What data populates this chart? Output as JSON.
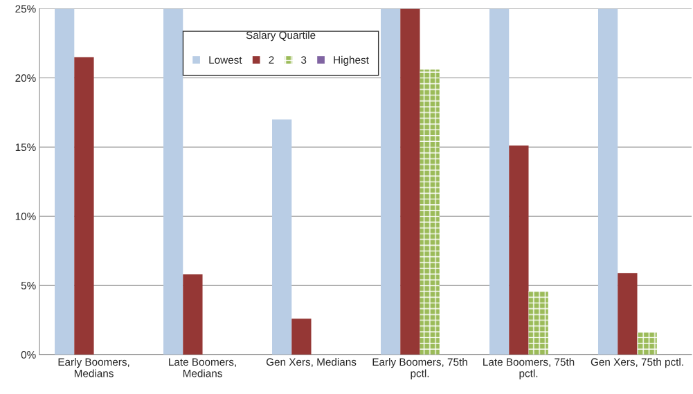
{
  "chart_data": {
    "type": "bar",
    "categories": [
      "Early Boomers,\nMedians",
      "Late Boomers,\nMedians",
      "Gen Xers, Medians",
      "Early Boomers, 75th\npctl.",
      "Late Boomers, 75th\npctl.",
      "Gen Xers, 75th pctl."
    ],
    "series": [
      {
        "name": "Lowest",
        "color": "#b9cde5",
        "values": [
          25,
          25,
          17,
          25,
          25,
          25
        ]
      },
      {
        "name": "2",
        "color": "#953735",
        "values": [
          21.5,
          5.8,
          2.6,
          25,
          15.1,
          5.9
        ]
      },
      {
        "name": "3",
        "color": "#9bbb59",
        "values": [
          null,
          null,
          null,
          20.6,
          4.6,
          1.6
        ]
      },
      {
        "name": "Highest",
        "color": "#8064a2",
        "values": [
          null,
          null,
          null,
          null,
          null,
          null
        ]
      }
    ],
    "legend_title": "Salary Quartile",
    "legend": "top",
    "ylim": [
      0,
      25
    ],
    "yticks": [
      {
        "value": 0,
        "label": "0%"
      },
      {
        "value": 5,
        "label": "5%"
      },
      {
        "value": 10,
        "label": "10%"
      },
      {
        "value": 15,
        "label": "15%"
      },
      {
        "value": 20,
        "label": "20%"
      },
      {
        "value": 25,
        "label": "25%"
      }
    ],
    "grid": "y"
  }
}
